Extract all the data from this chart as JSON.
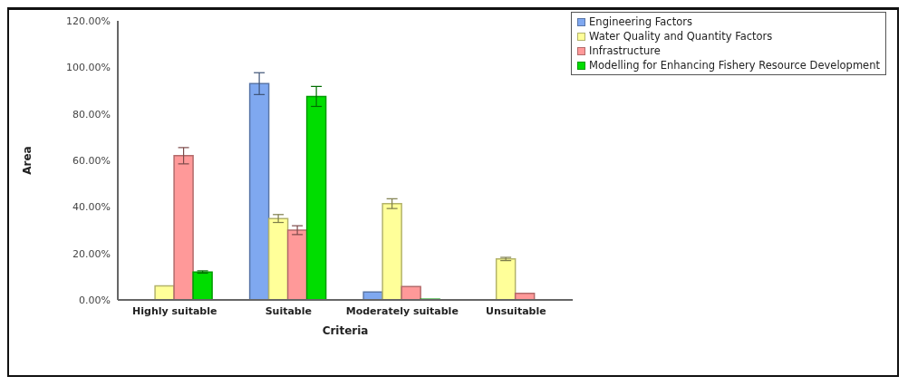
{
  "chart_data": {
    "type": "bar",
    "xlabel": "Criteria",
    "ylabel": "Area",
    "categories": [
      "Highly suitable",
      "Suitable",
      "Moderately suitable",
      "Unsuitable"
    ],
    "series": [
      {
        "name": "Engineering Factors",
        "color": "#7fa8f0",
        "values": [
          0,
          93,
          3.4,
          0
        ],
        "errors": [
          null,
          4.7,
          null,
          null
        ]
      },
      {
        "name": "Water Quality and Quantity Factors",
        "color": "#ffff99",
        "values": [
          6,
          35,
          41.4,
          17.6
        ],
        "errors": [
          null,
          1.7,
          2.1,
          0.7
        ]
      },
      {
        "name": "Infrastructure",
        "color": "#ff9999",
        "values": [
          62,
          30,
          5.7,
          2.8
        ],
        "errors": [
          3.5,
          1.9,
          null,
          null
        ]
      },
      {
        "name": "Modelling for Enhancing Fishery Resource Development",
        "color": "#00dd00",
        "values": [
          12,
          87.5,
          0.3,
          0
        ],
        "errors": [
          0.5,
          4.3,
          null,
          null
        ]
      }
    ],
    "ylim": [
      0,
      120
    ],
    "yticks": [
      {
        "value": 0,
        "label": "0.00%"
      },
      {
        "value": 20,
        "label": "20.00%"
      },
      {
        "value": 40,
        "label": "40.00%"
      },
      {
        "value": 60,
        "label": "60.00%"
      },
      {
        "value": 80,
        "label": "80.00%"
      },
      {
        "value": 100,
        "label": "100.00%"
      },
      {
        "value": 120,
        "label": "120.00%"
      }
    ],
    "grid": false,
    "legend": "top right"
  }
}
